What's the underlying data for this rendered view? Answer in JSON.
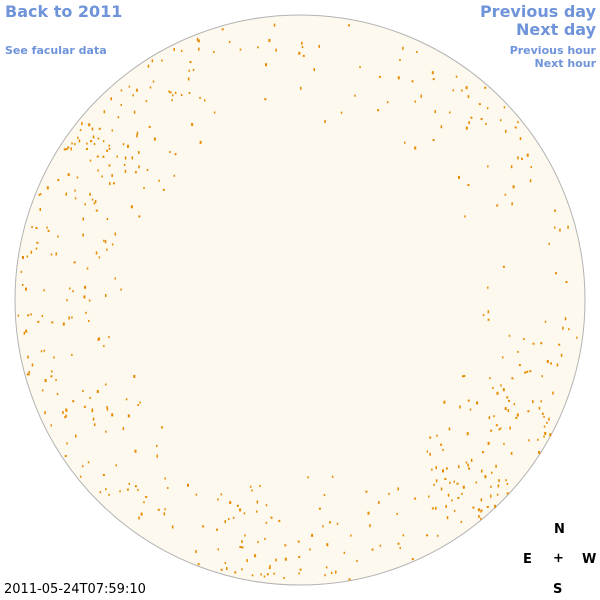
{
  "nav": {
    "back_label": "Back to 2011",
    "facular_label": "See facular data",
    "prev_day_label": "Previous day",
    "next_day_label": "Next day",
    "prev_hour_label": "Previous hour",
    "next_hour_label": "Next hour"
  },
  "timestamp": "2011-05-24T07:59:10",
  "compass": {
    "n": "N",
    "e": "E",
    "center": "+",
    "w": "W",
    "s": "S"
  },
  "colors": {
    "disk_fill": "#fdf9ee",
    "disk_stroke": "#b3b3b3",
    "facula": "#e68a00",
    "link": "#6f94d9"
  }
}
